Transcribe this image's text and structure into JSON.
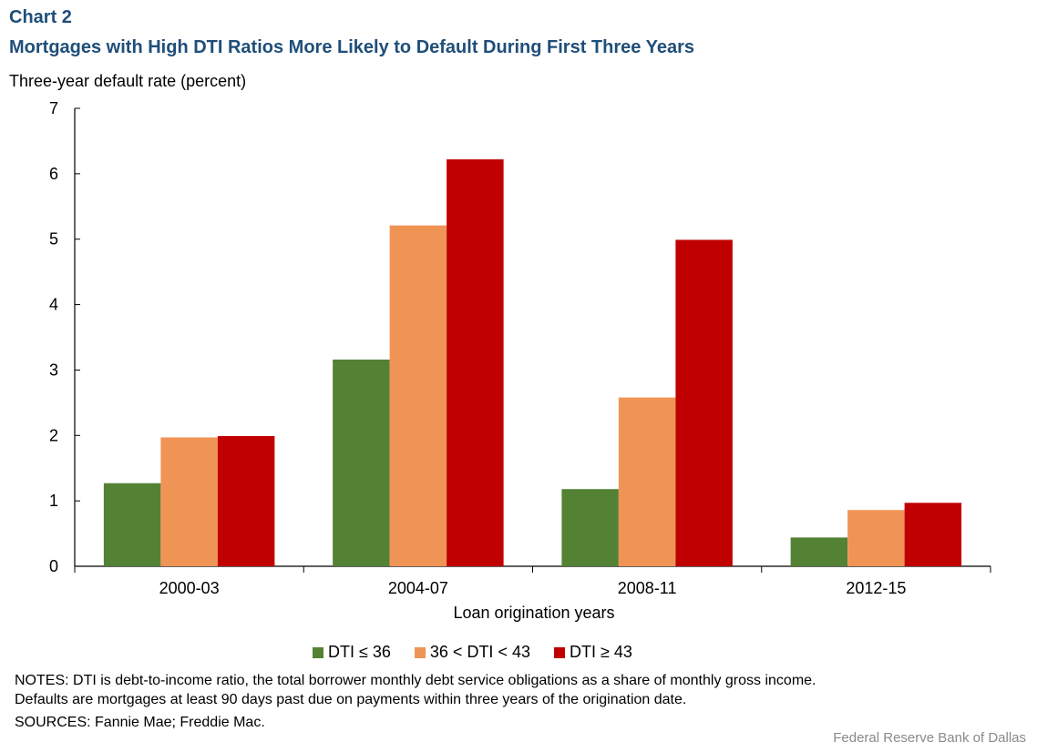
{
  "header": {
    "chart_number": "Chart 2",
    "title": "Mortgages with High DTI Ratios More Likely to Default During First Three Years"
  },
  "chart_data": {
    "type": "bar",
    "title": "Mortgages with High DTI Ratios More Likely to Default During First Three Years",
    "ylabel": "Three-year default rate (percent)",
    "xlabel": "Loan origination  years",
    "ylim": [
      0,
      7
    ],
    "yticks": [
      0,
      1,
      2,
      3,
      4,
      5,
      6,
      7
    ],
    "categories": [
      "2000-03",
      "2004-07",
      "2008-11",
      "2012-15"
    ],
    "series": [
      {
        "name": "DTI ≤ 36",
        "color": "#548235",
        "values": [
          1.27,
          3.16,
          1.18,
          0.44
        ]
      },
      {
        "name": "36 < DTI < 43",
        "color": "#f09455",
        "values": [
          1.97,
          5.21,
          2.58,
          0.86
        ]
      },
      {
        "name": "DTI ≥ 43",
        "color": "#c00000",
        "values": [
          1.99,
          6.22,
          4.99,
          0.97
        ]
      }
    ],
    "legend_position": "bottom",
    "grid": false
  },
  "footer": {
    "notes_line1": "NOTES: DTI is debt-to-income  ratio, the total borrower monthly debt service obligations as a share of monthly gross income.",
    "notes_line2": "Defaults are mortgages at least 90 days past due on payments within three years of the origination date.",
    "sources": "SOURCES: Fannie Mae; Freddie Mac.",
    "credit": "Federal Reserve Bank of Dallas"
  }
}
